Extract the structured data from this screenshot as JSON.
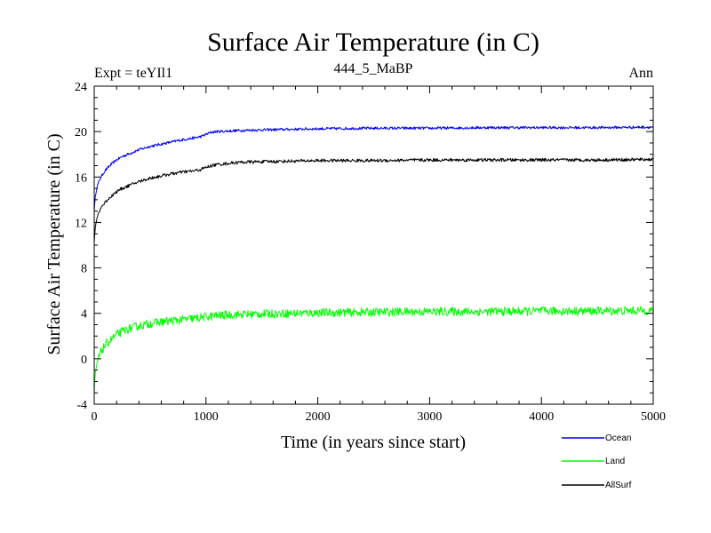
{
  "chart_data": {
    "type": "line",
    "title": "Surface Air Temperature (in C)",
    "subtitle_left": "Expt = teYIl1",
    "subtitle_center": "444_5_MaBP",
    "subtitle_right": "Ann",
    "xlabel": "Time (in years since start)",
    "ylabel": "Surface Air Temperature (in C)",
    "xlim": [
      0,
      5000
    ],
    "ylim": [
      -4,
      24
    ],
    "xticks": [
      0,
      1000,
      2000,
      3000,
      4000,
      5000
    ],
    "xtick_labels": [
      "0",
      "1000",
      "2000",
      "3000",
      "4000",
      "5000"
    ],
    "yticks": [
      -4,
      0,
      4,
      8,
      12,
      16,
      20,
      24
    ],
    "ytick_labels": [
      "-4",
      "0",
      "4",
      "8",
      "12",
      "16",
      "20",
      "24"
    ],
    "legend_position": "bottom-right, below plot",
    "series": [
      {
        "name": "Ocean",
        "color": "#0000ff",
        "noise": 0.12,
        "x": [
          0,
          10,
          30,
          60,
          100,
          150,
          200,
          250,
          300,
          400,
          500,
          600,
          700,
          800,
          900,
          950,
          1000,
          1050,
          1100,
          1200,
          1300,
          1500,
          2000,
          2500,
          3000,
          3500,
          4000,
          4500,
          5000
        ],
        "y": [
          13.0,
          14.3,
          15.3,
          16.0,
          16.6,
          17.1,
          17.5,
          17.8,
          18.0,
          18.4,
          18.7,
          18.9,
          19.1,
          19.3,
          19.45,
          19.55,
          19.75,
          19.95,
          20.0,
          20.05,
          20.1,
          20.15,
          20.25,
          20.3,
          20.3,
          20.35,
          20.35,
          20.35,
          20.4
        ]
      },
      {
        "name": "Land",
        "color": "#00ff00",
        "noise": 0.38,
        "x": [
          0,
          10,
          30,
          60,
          100,
          150,
          200,
          250,
          300,
          400,
          500,
          600,
          700,
          800,
          900,
          1000,
          1100,
          1200,
          1300,
          1500,
          2000,
          2500,
          3000,
          3500,
          4000,
          4500,
          5000
        ],
        "y": [
          -3.0,
          -1.3,
          -0.2,
          0.6,
          1.2,
          1.7,
          2.1,
          2.4,
          2.6,
          2.9,
          3.1,
          3.25,
          3.35,
          3.45,
          3.55,
          3.7,
          3.8,
          3.85,
          3.9,
          3.95,
          4.05,
          4.1,
          4.15,
          4.15,
          4.2,
          4.2,
          4.25
        ]
      },
      {
        "name": "AllSurf",
        "color": "#000000",
        "noise": 0.14,
        "x": [
          0,
          10,
          30,
          60,
          100,
          150,
          200,
          250,
          300,
          400,
          500,
          600,
          700,
          800,
          900,
          950,
          1000,
          1050,
          1100,
          1200,
          1300,
          1500,
          2000,
          2500,
          3000,
          3500,
          4000,
          4500,
          5000
        ],
        "y": [
          10.2,
          11.6,
          12.6,
          13.3,
          13.8,
          14.3,
          14.7,
          15.0,
          15.2,
          15.6,
          15.9,
          16.1,
          16.3,
          16.45,
          16.55,
          16.65,
          16.85,
          17.0,
          17.1,
          17.2,
          17.3,
          17.35,
          17.45,
          17.45,
          17.5,
          17.5,
          17.5,
          17.5,
          17.55
        ]
      }
    ]
  }
}
